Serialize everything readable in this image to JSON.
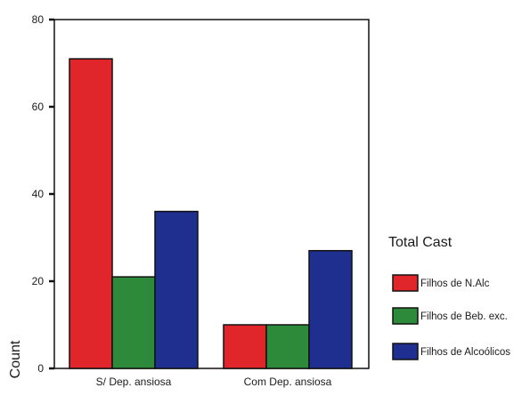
{
  "chart_data": {
    "type": "bar",
    "categories": [
      "S/ Dep. ansiosa",
      "Com Dep. ansiosa"
    ],
    "series": [
      {
        "name": "Filhos de N.Alc",
        "color": "#e0262a",
        "values": [
          71,
          10
        ]
      },
      {
        "name": "Filhos de Beb. exc.",
        "color": "#2c8a3a",
        "values": [
          21,
          10
        ]
      },
      {
        "name": "Filhos de Alcoólicos",
        "color": "#1f2f8f",
        "values": [
          36,
          27
        ]
      }
    ],
    "ylabel": "Count",
    "xlabel": "",
    "ylim": [
      0,
      80
    ],
    "yticks": [
      0,
      20,
      40,
      60,
      80
    ],
    "legend": {
      "title": "Total Cast",
      "placement": "right"
    },
    "grid": false
  }
}
